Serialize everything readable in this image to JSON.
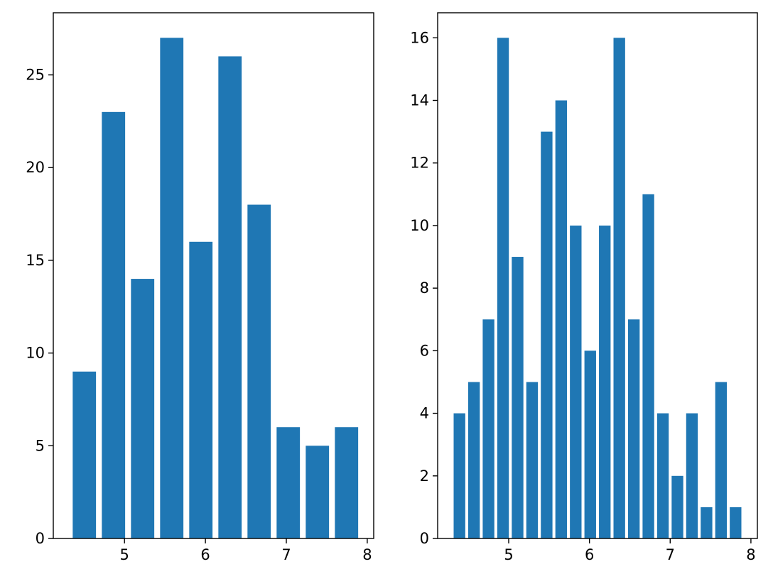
{
  "colors": {
    "bar": "#1f77b4",
    "axis": "#000000",
    "background": "#ffffff"
  },
  "chart_data": [
    {
      "type": "bar",
      "title": "",
      "xlabel": "",
      "ylabel": "",
      "bar_width": 0.288,
      "x": [
        4.504,
        4.864,
        5.224,
        5.584,
        5.944,
        6.304,
        6.664,
        7.024,
        7.384,
        7.744
      ],
      "values": [
        9,
        23,
        14,
        27,
        16,
        26,
        18,
        6,
        5,
        6
      ],
      "xlim": [
        4.12,
        8.08
      ],
      "ylim": [
        0,
        28.35
      ],
      "xticks": [
        5,
        6,
        7,
        8
      ],
      "xtick_labels": [
        "5",
        "6",
        "7",
        "8"
      ],
      "yticks": [
        0,
        5,
        10,
        15,
        20,
        25
      ],
      "ytick_labels": [
        "0",
        "5",
        "10",
        "15",
        "20",
        "25"
      ]
    },
    {
      "type": "bar",
      "title": "",
      "xlabel": "",
      "ylabel": "",
      "bar_width": 0.144,
      "x": [
        4.39,
        4.57,
        4.75,
        4.93,
        5.11,
        5.29,
        5.47,
        5.65,
        5.83,
        6.01,
        6.19,
        6.37,
        6.55,
        6.73,
        6.91,
        7.09,
        7.27,
        7.45,
        7.63,
        7.81
      ],
      "values": [
        4,
        5,
        7,
        16,
        9,
        5,
        13,
        14,
        10,
        6,
        10,
        16,
        7,
        11,
        4,
        2,
        4,
        1,
        5,
        1
      ],
      "xlim": [
        4.12,
        8.08
      ],
      "ylim": [
        0,
        16.8
      ],
      "xticks": [
        5,
        6,
        7,
        8
      ],
      "xtick_labels": [
        "5",
        "6",
        "7",
        "8"
      ],
      "yticks": [
        0,
        2,
        4,
        6,
        8,
        10,
        12,
        14,
        16
      ],
      "ytick_labels": [
        "0",
        "2",
        "4",
        "6",
        "8",
        "10",
        "12",
        "14",
        "16"
      ]
    }
  ]
}
